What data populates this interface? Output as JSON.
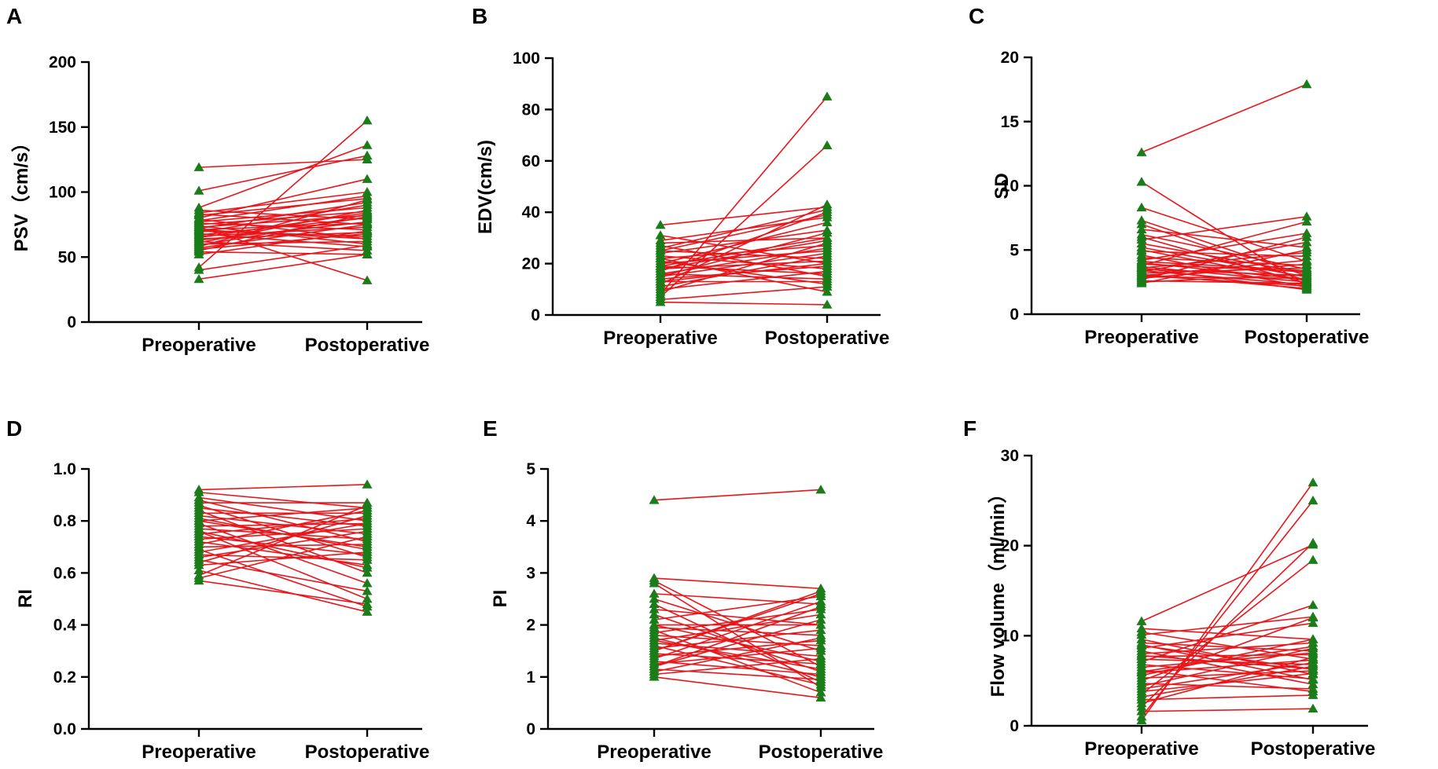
{
  "colors": {
    "line": "#e8161b",
    "marker": "#1a7d1a",
    "axis": "#000000"
  },
  "chart_data": [
    {
      "letter": "A",
      "type": "line",
      "ylabel": "PSV（cm/s）",
      "categories": [
        "Preoperative",
        "Postoperative"
      ],
      "ylim": [
        0,
        200
      ],
      "yticks": [
        0,
        50,
        100,
        150,
        200
      ],
      "ytick_labels": [
        "0",
        "50",
        "100",
        "150",
        "200"
      ],
      "pairs": [
        [
          119,
          125
        ],
        [
          101,
          128
        ],
        [
          88,
          136
        ],
        [
          86,
          79
        ],
        [
          84,
          100
        ],
        [
          82,
          95
        ],
        [
          80,
          110
        ],
        [
          79,
          64
        ],
        [
          78,
          97
        ],
        [
          77,
          88
        ],
        [
          76,
          71
        ],
        [
          75,
          85
        ],
        [
          74,
          60
        ],
        [
          73,
          82
        ],
        [
          72,
          92
        ],
        [
          71,
          76
        ],
        [
          70,
          66
        ],
        [
          69,
          90
        ],
        [
          68,
          58
        ],
        [
          67,
          80
        ],
        [
          66,
          73
        ],
        [
          65,
          84
        ],
        [
          64,
          69
        ],
        [
          63,
          77
        ],
        [
          62,
          55
        ],
        [
          61,
          86
        ],
        [
          60,
          62
        ],
        [
          58,
          94
        ],
        [
          57,
          75
        ],
        [
          56,
          68
        ],
        [
          55,
          83
        ],
        [
          54,
          52
        ],
        [
          52,
          70
        ],
        [
          42,
          155
        ],
        [
          40,
          59
        ],
        [
          33,
          52
        ],
        [
          73,
          32
        ],
        [
          83,
          75
        ],
        [
          59,
          81
        ],
        [
          71,
          64
        ]
      ]
    },
    {
      "letter": "B",
      "type": "line",
      "ylabel": "EDV(cm/s)",
      "categories": [
        "Preoperative",
        "Postoperative"
      ],
      "ylim": [
        0,
        100
      ],
      "yticks": [
        0,
        20,
        40,
        60,
        80,
        100
      ],
      "ytick_labels": [
        "0",
        "20",
        "40",
        "60",
        "80",
        "100"
      ],
      "pairs": [
        [
          35,
          42
        ],
        [
          31,
          20
        ],
        [
          29,
          38
        ],
        [
          28,
          30
        ],
        [
          27,
          15
        ],
        [
          26,
          41
        ],
        [
          25,
          22
        ],
        [
          24,
          33
        ],
        [
          23,
          18
        ],
        [
          22,
          27
        ],
        [
          21,
          12
        ],
        [
          20,
          36
        ],
        [
          20,
          25
        ],
        [
          19,
          16
        ],
        [
          18,
          29
        ],
        [
          18,
          21
        ],
        [
          17,
          40
        ],
        [
          16,
          14
        ],
        [
          15,
          24
        ],
        [
          15,
          32
        ],
        [
          14,
          19
        ],
        [
          13,
          13
        ],
        [
          12,
          43
        ],
        [
          11,
          23
        ],
        [
          10,
          17
        ],
        [
          9,
          28
        ],
        [
          8,
          85
        ],
        [
          7,
          66
        ],
        [
          6,
          11
        ],
        [
          5,
          4
        ],
        [
          22,
          9
        ],
        [
          16,
          26
        ],
        [
          19,
          30
        ],
        [
          13,
          20
        ],
        [
          25,
          39
        ]
      ]
    },
    {
      "letter": "C",
      "type": "line",
      "ylabel": "SD",
      "categories": [
        "Preoperative",
        "Postoperative"
      ],
      "ylim": [
        0,
        20
      ],
      "yticks": [
        0,
        5,
        10,
        15,
        20
      ],
      "ytick_labels": [
        "0",
        "5",
        "10",
        "15",
        "20"
      ],
      "pairs": [
        [
          12.6,
          17.9
        ],
        [
          10.3,
          2.2
        ],
        [
          8.3,
          4.1
        ],
        [
          7.3,
          3.0
        ],
        [
          7.0,
          2.6
        ],
        [
          6.6,
          5.2
        ],
        [
          6.2,
          3.5
        ],
        [
          6.0,
          2.4
        ],
        [
          5.8,
          7.6
        ],
        [
          5.5,
          3.2
        ],
        [
          5.2,
          2.9
        ],
        [
          4.9,
          4.5
        ],
        [
          4.6,
          2.1
        ],
        [
          4.4,
          3.8
        ],
        [
          4.2,
          6.3
        ],
        [
          4.0,
          2.7
        ],
        [
          3.9,
          3.3
        ],
        [
          3.8,
          7.2
        ],
        [
          3.7,
          2.5
        ],
        [
          3.6,
          4.8
        ],
        [
          3.5,
          3.0
        ],
        [
          3.4,
          2.3
        ],
        [
          3.3,
          5.6
        ],
        [
          3.2,
          3.6
        ],
        [
          3.1,
          2.0
        ],
        [
          3.0,
          4.2
        ],
        [
          2.9,
          2.8
        ],
        [
          2.8,
          3.9
        ],
        [
          2.7,
          6.0
        ],
        [
          2.6,
          2.4
        ],
        [
          2.5,
          3.1
        ],
        [
          2.4,
          5.0
        ],
        [
          3.6,
          1.9
        ],
        [
          4.1,
          3.4
        ],
        [
          3.0,
          2.2
        ],
        [
          5.0,
          2.6
        ]
      ]
    },
    {
      "letter": "D",
      "type": "line",
      "ylabel": "RI",
      "categories": [
        "Preoperative",
        "Postoperative"
      ],
      "ylim": [
        0,
        1
      ],
      "yticks": [
        0,
        0.2,
        0.4,
        0.6,
        0.8,
        1.0
      ],
      "ytick_labels": [
        "0.0",
        "0.2",
        "0.4",
        "0.6",
        "0.8",
        "1.0"
      ],
      "pairs": [
        [
          0.92,
          0.94
        ],
        [
          0.91,
          0.85
        ],
        [
          0.89,
          0.8
        ],
        [
          0.88,
          0.72
        ],
        [
          0.87,
          0.87
        ],
        [
          0.86,
          0.66
        ],
        [
          0.85,
          0.78
        ],
        [
          0.84,
          0.6
        ],
        [
          0.83,
          0.83
        ],
        [
          0.82,
          0.75
        ],
        [
          0.81,
          0.69
        ],
        [
          0.8,
          0.85
        ],
        [
          0.79,
          0.56
        ],
        [
          0.78,
          0.79
        ],
        [
          0.77,
          0.73
        ],
        [
          0.76,
          0.5
        ],
        [
          0.75,
          0.81
        ],
        [
          0.74,
          0.67
        ],
        [
          0.73,
          0.77
        ],
        [
          0.72,
          0.63
        ],
        [
          0.71,
          0.84
        ],
        [
          0.7,
          0.71
        ],
        [
          0.69,
          0.47
        ],
        [
          0.68,
          0.79
        ],
        [
          0.67,
          0.65
        ],
        [
          0.66,
          0.76
        ],
        [
          0.65,
          0.53
        ],
        [
          0.64,
          0.82
        ],
        [
          0.63,
          0.68
        ],
        [
          0.61,
          0.45
        ],
        [
          0.59,
          0.86
        ],
        [
          0.57,
          0.48
        ],
        [
          0.58,
          0.74
        ],
        [
          0.76,
          0.62
        ],
        [
          0.8,
          0.7
        ]
      ]
    },
    {
      "letter": "E",
      "type": "line",
      "ylabel": "PI",
      "categories": [
        "Preoperative",
        "Postoperative"
      ],
      "ylim": [
        0,
        5
      ],
      "yticks": [
        0,
        1,
        2,
        3,
        4,
        5
      ],
      "ytick_labels": [
        "0",
        "1",
        "2",
        "3",
        "4",
        "5"
      ],
      "pairs": [
        [
          4.4,
          4.6
        ],
        [
          2.9,
          2.7
        ],
        [
          2.85,
          1.2
        ],
        [
          2.8,
          0.8
        ],
        [
          2.6,
          2.4
        ],
        [
          2.5,
          1.5
        ],
        [
          2.4,
          0.9
        ],
        [
          2.3,
          2.0
        ],
        [
          2.2,
          1.1
        ],
        [
          2.1,
          2.55
        ],
        [
          2.0,
          1.3
        ],
        [
          1.95,
          1.8
        ],
        [
          1.9,
          0.7
        ],
        [
          1.85,
          2.3
        ],
        [
          1.8,
          1.6
        ],
        [
          1.75,
          1.0
        ],
        [
          1.7,
          2.2
        ],
        [
          1.65,
          1.4
        ],
        [
          1.6,
          0.85
        ],
        [
          1.55,
          1.9
        ],
        [
          1.5,
          2.6
        ],
        [
          1.45,
          1.25
        ],
        [
          1.4,
          1.7
        ],
        [
          1.35,
          2.45
        ],
        [
          1.3,
          1.05
        ],
        [
          1.25,
          1.55
        ],
        [
          1.2,
          2.1
        ],
        [
          1.15,
          0.95
        ],
        [
          1.1,
          1.75
        ],
        [
          1.05,
          1.35
        ],
        [
          1.0,
          0.6
        ],
        [
          1.5,
          2.65
        ],
        [
          2.0,
          2.0
        ],
        [
          1.7,
          1.15
        ],
        [
          1.2,
          2.35
        ]
      ]
    },
    {
      "letter": "F",
      "type": "line",
      "ylabel": "Flow volume（ml/min）",
      "categories": [
        "Preoperative",
        "Postoperative"
      ],
      "ylim": [
        0,
        30
      ],
      "yticks": [
        0,
        10,
        20,
        30
      ],
      "ytick_labels": [
        "0",
        "10",
        "20",
        "30"
      ],
      "pairs": [
        [
          11.6,
          20.1
        ],
        [
          10.8,
          9.6
        ],
        [
          10.4,
          7.4
        ],
        [
          10.1,
          12.1
        ],
        [
          9.6,
          5.7
        ],
        [
          9.2,
          8.3
        ],
        [
          8.9,
          6.3
        ],
        [
          8.6,
          11.4
        ],
        [
          8.3,
          4.6
        ],
        [
          8.0,
          9.2
        ],
        [
          7.7,
          7.9
        ],
        [
          7.4,
          6.8
        ],
        [
          7.1,
          13.4
        ],
        [
          6.8,
          5.2
        ],
        [
          6.5,
          8.1
        ],
        [
          6.2,
          3.8
        ],
        [
          5.9,
          7.3
        ],
        [
          5.6,
          9.6
        ],
        [
          5.3,
          6.1
        ],
        [
          5.0,
          12.0
        ],
        [
          4.7,
          4.1
        ],
        [
          4.4,
          8.6
        ],
        [
          4.1,
          7.0
        ],
        [
          3.8,
          5.8
        ],
        [
          3.5,
          18.4
        ],
        [
          3.2,
          6.6
        ],
        [
          2.9,
          3.4
        ],
        [
          2.5,
          7.6
        ],
        [
          2.1,
          20.3
        ],
        [
          1.6,
          1.9
        ],
        [
          1.0,
          25.0
        ],
        [
          0.6,
          27.0
        ],
        [
          7.8,
          6.3
        ],
        [
          6.0,
          8.8
        ],
        [
          9.0,
          5.1
        ]
      ]
    }
  ]
}
